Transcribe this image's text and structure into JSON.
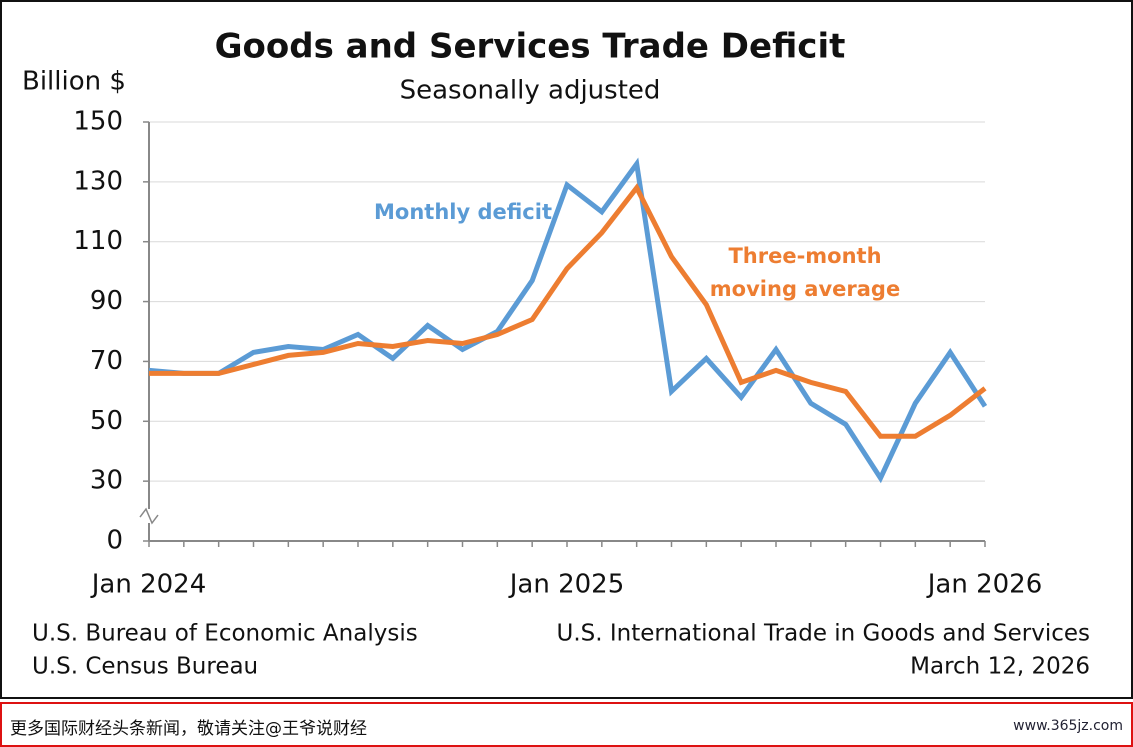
{
  "chart_data": {
    "type": "line",
    "title": "Goods and Services Trade Deficit",
    "subtitle": "Seasonally adjusted",
    "y_label": "Billion $",
    "categories": [
      "Jan 2024",
      null,
      null,
      null,
      null,
      null,
      null,
      null,
      null,
      null,
      null,
      null,
      "Jan 2025",
      null,
      null,
      null,
      null,
      null,
      null,
      null,
      null,
      null,
      null,
      null,
      "Jan 2026"
    ],
    "series": [
      {
        "name": "Monthly deficit",
        "color": "#5b9bd5",
        "values": [
          67,
          66,
          66,
          73,
          75,
          74,
          79,
          71,
          82,
          74,
          80,
          97,
          129,
          120,
          136,
          60,
          71,
          58,
          74,
          56,
          49,
          31,
          56,
          73,
          55
        ]
      },
      {
        "name": "Three-month moving average",
        "color": "#ed7d31",
        "values": [
          66,
          66,
          66,
          69,
          72,
          73,
          76,
          75,
          77,
          76,
          79,
          84,
          101,
          113,
          128,
          105,
          89,
          63,
          67,
          63,
          60,
          45,
          45,
          52,
          61
        ]
      }
    ],
    "ylim": [
      0,
      150
    ],
    "yticks": [
      0,
      30,
      50,
      70,
      90,
      110,
      130,
      150
    ],
    "y_axis_break": true,
    "grid": true,
    "source_left": [
      "U.S. Bureau of Economic Analysis",
      "U.S. Census Bureau"
    ],
    "source_right": [
      "U.S. International Trade in Goods and Services",
      "March 12, 2026"
    ]
  },
  "banner": {
    "text": "更多国际财经头条新闻，敬请关注@王爷说财经",
    "site": "www.365jz.com"
  }
}
